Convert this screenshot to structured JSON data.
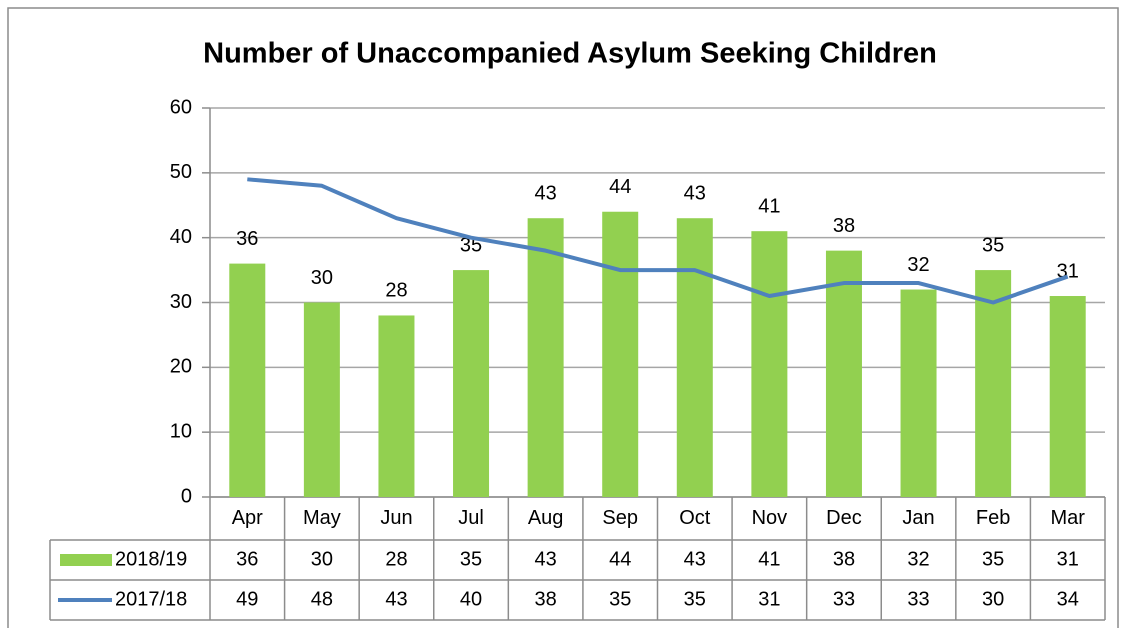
{
  "chart_data": {
    "type": "bar",
    "title": "Number of Unaccompanied Asylum Seeking Children",
    "categories": [
      "Apr",
      "May",
      "Jun",
      "Jul",
      "Aug",
      "Sep",
      "Oct",
      "Nov",
      "Dec",
      "Jan",
      "Feb",
      "Mar"
    ],
    "series": [
      {
        "name": "2018/19",
        "type": "bar",
        "color": "#92d050",
        "values": [
          36,
          30,
          28,
          35,
          43,
          44,
          43,
          41,
          38,
          32,
          35,
          31
        ]
      },
      {
        "name": "2017/18",
        "type": "line",
        "color": "#4f81bd",
        "values": [
          49,
          48,
          43,
          40,
          38,
          35,
          35,
          31,
          33,
          33,
          30,
          34
        ]
      }
    ],
    "ylim": [
      0,
      60
    ],
    "yticks": [
      0,
      10,
      20,
      30,
      40,
      50,
      60
    ],
    "grid": true
  }
}
